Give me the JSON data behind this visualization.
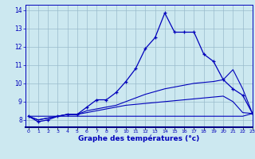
{
  "xlabel": "Graphe des températures (°c)",
  "bg_color": "#cce8f0",
  "line_color": "#0000bb",
  "grid_color": "#99bbcc",
  "x_hours": [
    0,
    1,
    2,
    3,
    4,
    5,
    6,
    7,
    8,
    9,
    10,
    11,
    12,
    13,
    14,
    15,
    16,
    17,
    18,
    19,
    20,
    21,
    22,
    23
  ],
  "temp_main": [
    8.2,
    7.9,
    8.0,
    8.2,
    8.3,
    8.3,
    8.7,
    9.1,
    9.1,
    9.5,
    10.1,
    10.8,
    11.9,
    12.5,
    13.85,
    12.8,
    12.8,
    12.8,
    11.6,
    11.2,
    10.2,
    9.7,
    9.35,
    8.35
  ],
  "temp_line2": [
    8.2,
    8.0,
    8.1,
    8.2,
    8.3,
    8.3,
    8.5,
    8.6,
    8.7,
    8.8,
    9.0,
    9.2,
    9.4,
    9.55,
    9.7,
    9.8,
    9.9,
    10.0,
    10.05,
    10.1,
    10.2,
    10.75,
    9.7,
    8.35
  ],
  "temp_line3": [
    8.2,
    8.0,
    8.1,
    8.2,
    8.3,
    8.3,
    8.4,
    8.5,
    8.6,
    8.7,
    8.8,
    8.85,
    8.9,
    8.95,
    9.0,
    9.05,
    9.1,
    9.15,
    9.2,
    9.25,
    9.3,
    9.0,
    8.4,
    8.35
  ],
  "temp_line4": [
    8.2,
    8.2,
    8.2,
    8.2,
    8.2,
    8.2,
    8.2,
    8.2,
    8.2,
    8.2,
    8.2,
    8.2,
    8.2,
    8.2,
    8.2,
    8.2,
    8.2,
    8.2,
    8.2,
    8.2,
    8.2,
    8.2,
    8.2,
    8.35
  ],
  "ylim": [
    7.6,
    14.3
  ],
  "xlim": [
    -0.3,
    23
  ],
  "yticks": [
    8,
    9,
    10,
    11,
    12,
    13,
    14
  ],
  "xtick_labels": [
    "0",
    "1",
    "2",
    "3",
    "4",
    "5",
    "6",
    "7",
    "8",
    "9",
    "10",
    "11",
    "12",
    "13",
    "14",
    "15",
    "16",
    "17",
    "18",
    "19",
    "20",
    "21",
    "22",
    "23"
  ]
}
